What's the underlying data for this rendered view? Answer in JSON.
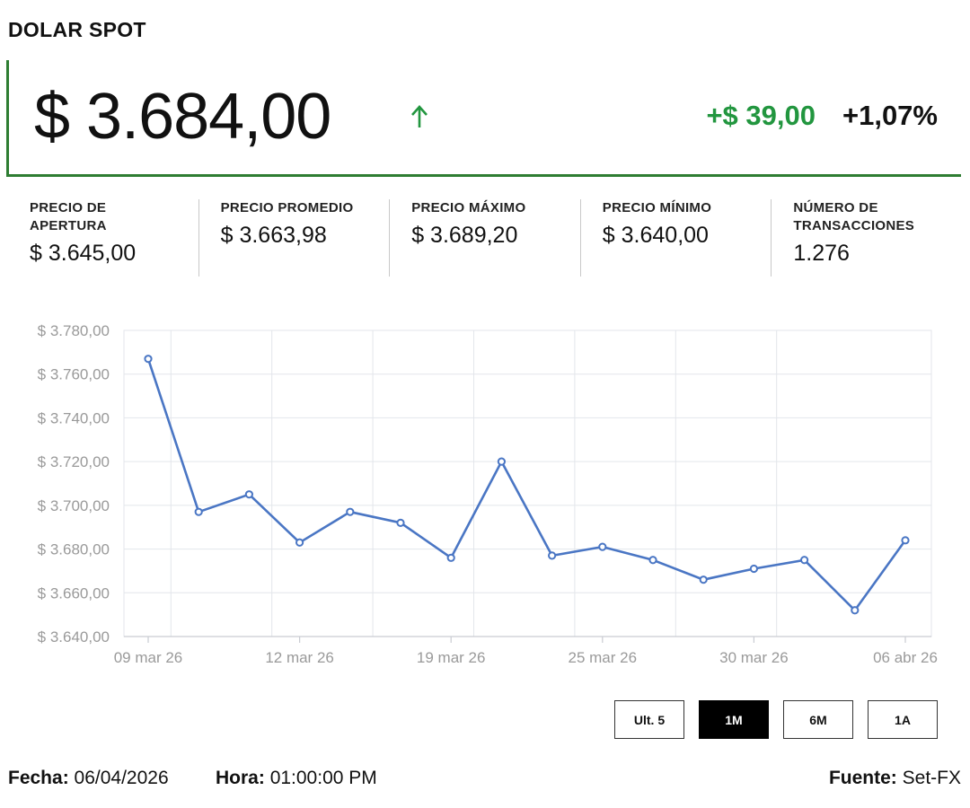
{
  "header": {
    "title": "DOLAR SPOT",
    "price": "$ 3.684,00",
    "change_abs": "+$ 39,00",
    "change_pct": "+1,07%",
    "arrow_icon": "arrow-up-icon",
    "up_color": "#22963f",
    "accent_color": "#2e7d32"
  },
  "stats": [
    {
      "label": "PRECIO DE APERTURA",
      "value": "$ 3.645,00"
    },
    {
      "label": "PRECIO PROMEDIO",
      "value": "$ 3.663,98"
    },
    {
      "label": "PRECIO MÁXIMO",
      "value": "$ 3.689,20"
    },
    {
      "label": "PRECIO MÍNIMO",
      "value": "$ 3.640,00"
    },
    {
      "label": "NÚMERO DE TRANSACCIONES",
      "value": "1.276"
    }
  ],
  "chart_data": {
    "type": "line",
    "title": "",
    "xlabel": "",
    "ylabel": "",
    "ylim": [
      3640,
      3780
    ],
    "y_ticks": [
      "$ 3.780,00",
      "$ 3.760,00",
      "$ 3.740,00",
      "$ 3.720,00",
      "$ 3.700,00",
      "$ 3.680,00",
      "$ 3.660,00",
      "$ 3.640,00"
    ],
    "y_tick_values": [
      3780,
      3760,
      3740,
      3720,
      3700,
      3680,
      3660,
      3640
    ],
    "x_ticks": [
      "09 mar 26",
      "12 mar 26",
      "19 mar 26",
      "25 mar 26",
      "30 mar 26",
      "06 abr 26"
    ],
    "x_tick_indices": [
      0,
      3,
      6,
      9,
      12,
      15
    ],
    "grid": true,
    "line_color": "#4a76c4",
    "series": [
      {
        "values": [
          3767,
          3697,
          3705,
          3683,
          3697,
          3692,
          3676,
          3720,
          3677,
          3681,
          3675,
          3666,
          3671,
          3675,
          3652,
          3684
        ]
      }
    ]
  },
  "range_buttons": [
    {
      "label": "Ult. 5",
      "active": false
    },
    {
      "label": "1M",
      "active": true
    },
    {
      "label": "6M",
      "active": false
    },
    {
      "label": "1A",
      "active": false
    }
  ],
  "footer": {
    "fecha_label": "Fecha:",
    "fecha_value": "06/04/2026",
    "hora_label": "Hora:",
    "hora_value": "01:00:00 PM",
    "fuente_label": "Fuente:",
    "fuente_value": "Set-FX"
  }
}
